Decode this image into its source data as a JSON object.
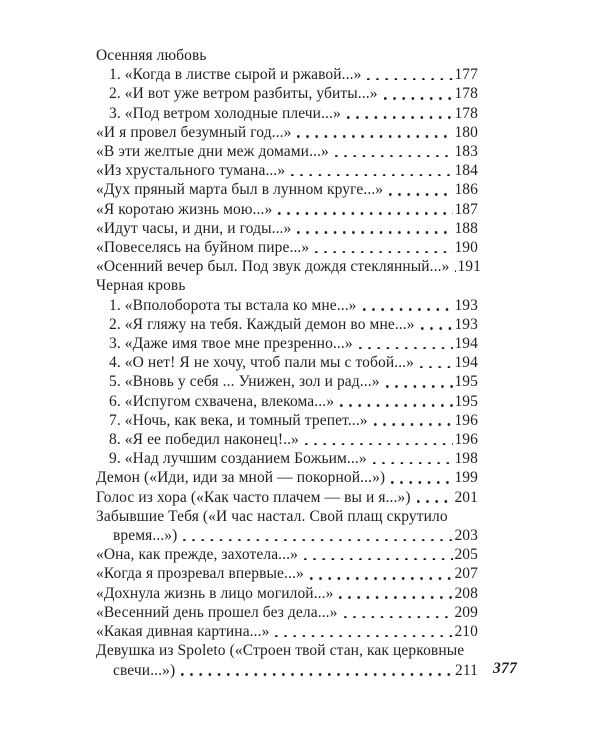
{
  "page": {
    "background": "#ffffff",
    "ink": "#211f1e",
    "folio": "377"
  },
  "toc": {
    "entries": [
      {
        "text": "Осенняя любовь",
        "page": "",
        "indent": 0
      },
      {
        "text": "1. «Когда в листве сырой и ржавой...»",
        "page": "177",
        "indent": 1
      },
      {
        "text": "2. «И вот уже ветром разбиты, убиты...»",
        "page": "178",
        "indent": 1
      },
      {
        "text": "3. «Под ветром холодные плечи...»",
        "page": "178",
        "indent": 1
      },
      {
        "text": "«И я провел безумный год...»",
        "page": "180",
        "indent": 0
      },
      {
        "text": "«В эти желтые дни меж домами...»",
        "page": "183",
        "indent": 0
      },
      {
        "text": "«Из хрустального тумана...»",
        "page": "184",
        "indent": 0
      },
      {
        "text": "«Дух пряный марта был в лунном круге...»",
        "page": "186",
        "indent": 0
      },
      {
        "text": "«Я коротаю жизнь мою...»",
        "page": "187",
        "indent": 0
      },
      {
        "text": "«Идут часы, и дни, и годы...»",
        "page": "188",
        "indent": 0
      },
      {
        "text": "«Повеселясь на буйном пире...»",
        "page": "190",
        "indent": 0
      },
      {
        "text": "«Осенний вечер был. Под звук дождя стеклянный...»",
        "page": "191",
        "indent": 0
      },
      {
        "text": "Черная кровь",
        "page": "",
        "indent": 0
      },
      {
        "text": "1. «Вполоборота ты встала ко мне...»",
        "page": "193",
        "indent": 1
      },
      {
        "text": "2. «Я гляжу на тебя. Каждый демон во мне...»",
        "page": "193",
        "indent": 1
      },
      {
        "text": "3. «Даже имя твое мне презренно...»",
        "page": "194",
        "indent": 1
      },
      {
        "text": "4. «О нет! Я не хочу, чтоб пали мы с тобой...»",
        "page": "194",
        "indent": 1
      },
      {
        "text": "5. «Вновь у себя ... Унижен, зол и рад...»",
        "page": "195",
        "indent": 1
      },
      {
        "text": "6. «Испугом схвачена, влекома...»",
        "page": "195",
        "indent": 1
      },
      {
        "text": "7. «Ночь, как века, и томный трепет...»",
        "page": "196",
        "indent": 1
      },
      {
        "text": "8. «Я ее победил наконец!..»",
        "page": "196",
        "indent": 1
      },
      {
        "text": "9. «Над лучшим созданием Божьим...»",
        "page": "198",
        "indent": 1
      },
      {
        "text": "Демон («Иди, иди за мной — покорной...»)",
        "page": "199",
        "indent": 0
      },
      {
        "text": "Голос из хора («Как часто плачем — вы и я...»)",
        "page": "201",
        "indent": 0
      },
      {
        "text": "Забывшие Тебя («И час настал. Свой плащ скрутило",
        "page": "",
        "indent": 0
      },
      {
        "text": "время...»)",
        "page": "203",
        "indent": 2
      },
      {
        "text": "«Она, как прежде, захотела...»",
        "page": "205",
        "indent": 0
      },
      {
        "text": "«Когда я прозревал впервые...»",
        "page": "207",
        "indent": 0
      },
      {
        "text": "«Дохнула жизнь в лицо могилой...»",
        "page": "208",
        "indent": 0
      },
      {
        "text": "«Весенний день прошел без дела...»",
        "page": "209",
        "indent": 0
      },
      {
        "text": "«Какая дивная картина...»",
        "page": "210",
        "indent": 0
      },
      {
        "text": "Девушка из Spoleto («Строен твой стан, как церковные",
        "page": "",
        "indent": 0
      },
      {
        "text": "свечи...»)",
        "page": "211",
        "indent": 2
      }
    ]
  }
}
